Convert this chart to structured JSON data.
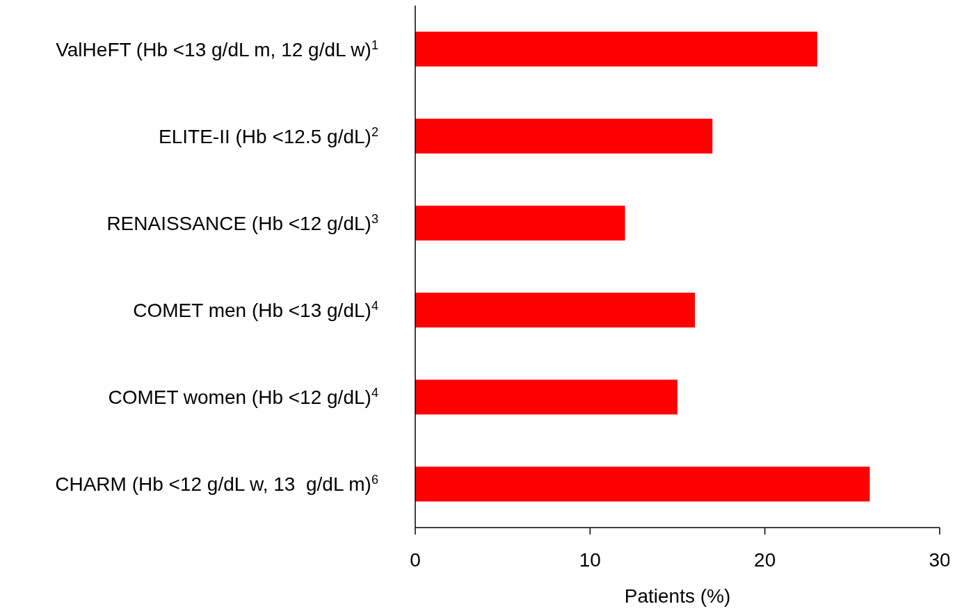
{
  "chart_data": {
    "type": "bar",
    "orientation": "horizontal",
    "xlabel": "Patients (%)",
    "categories": [
      "ValHeFT (Hb <13 g/dL m, 12 g/dL w)$^{1}$",
      "ELITE-II (Hb <12.5 g/dL)$^{2}$",
      "RENAISSANCE (Hb <12 g/dL)$^{3}$",
      "COMET men (Hb <13 g/dL)$^{4}$",
      "COMET women (Hb <12 g/dL)$^{4}$",
      "CHARM (Hb <12 g/dL w, 13  g/dL m)$^{6}$"
    ],
    "values": [
      23,
      17,
      12,
      16,
      15,
      26
    ],
    "color": "#ff0000",
    "xlim": [
      0,
      30
    ],
    "xticks": [
      0,
      10,
      20,
      30
    ],
    "grid": false
  }
}
